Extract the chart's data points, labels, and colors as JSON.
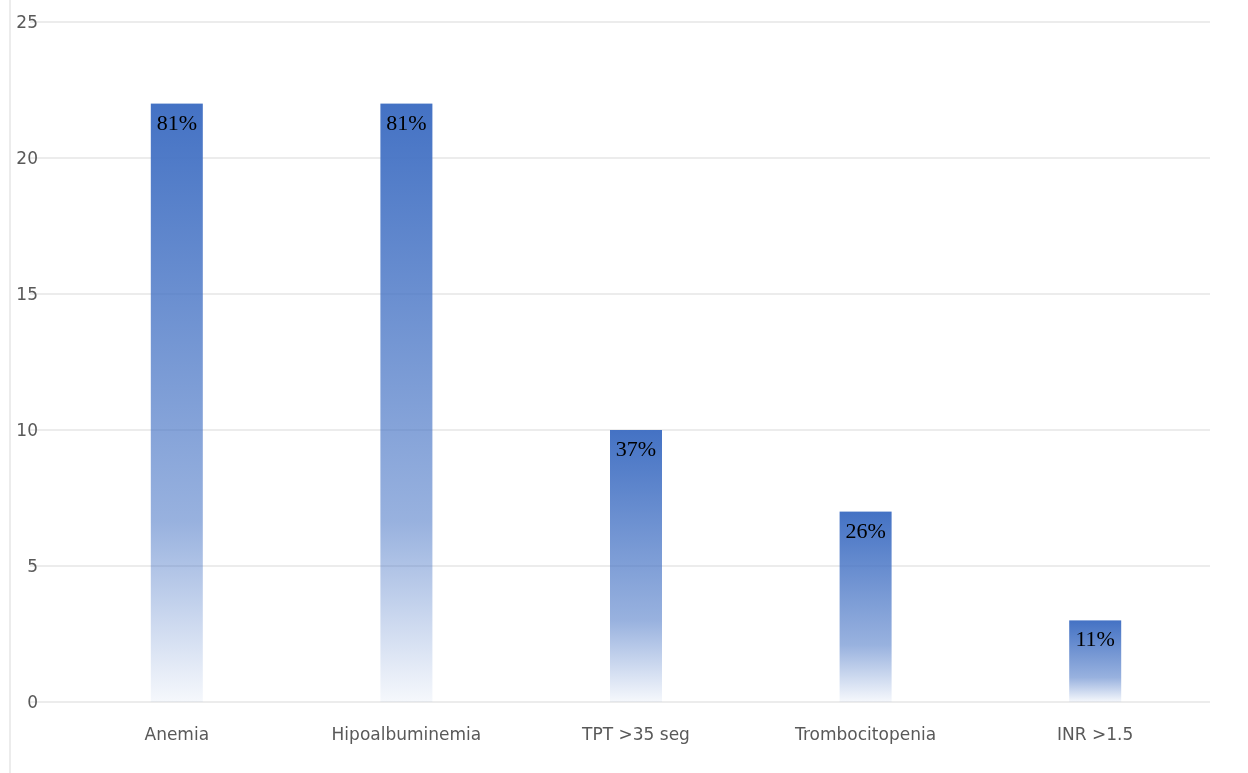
{
  "chart_data": {
    "type": "bar",
    "categories": [
      "Anemia",
      "Hipoalbuminemia",
      "TPT >35 seg",
      "Trombocitopenia",
      "INR >1.5"
    ],
    "values": [
      22,
      22,
      10,
      7,
      3
    ],
    "annotations": [
      {
        "text": "81%",
        "x": "Anemia",
        "y": 22
      },
      {
        "text": "81%",
        "x": "Hipoalbuminemia",
        "y": 22
      },
      {
        "text": "37%",
        "x": "TPT >35 seg",
        "y": 10
      },
      {
        "text": "26%",
        "x": "Trombocitopenia",
        "y": 7
      },
      {
        "text": "11%",
        "x": "INR >1.5",
        "y": 3
      }
    ],
    "color": "#4472c4",
    "ylim": [
      0,
      25
    ],
    "yticks": [
      0,
      5,
      10,
      15,
      20,
      25
    ],
    "grid": "y"
  }
}
